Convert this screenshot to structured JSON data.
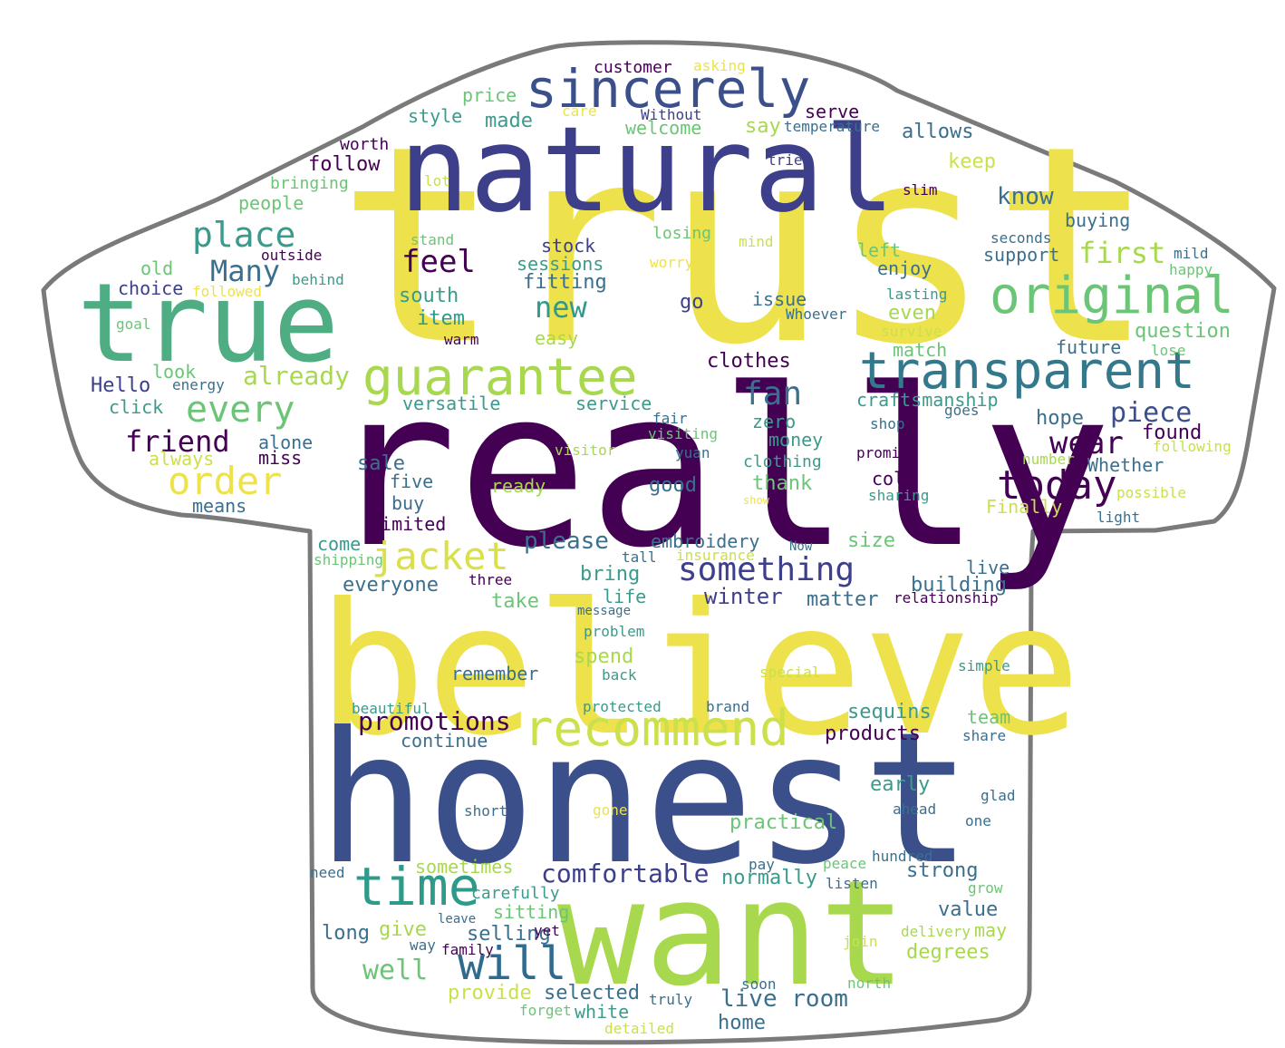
{
  "shape": "t-shirt",
  "colors": {
    "outline": "#7a7a7a",
    "fill": "#ffffff",
    "palette": [
      "#440154",
      "#3b528b",
      "#21918c",
      "#5ec962",
      "#a0da39",
      "#fde725"
    ]
  },
  "words": [
    {
      "text": "trust",
      "color": "#ede24c"
    },
    {
      "text": "really",
      "color": "#440154"
    },
    {
      "text": "believe",
      "color": "#ede24c"
    },
    {
      "text": "honest",
      "color": "#3b4f8a"
    },
    {
      "text": "natural",
      "color": "#3d3f8a"
    },
    {
      "text": "want",
      "color": "#a8d84e"
    },
    {
      "text": "true",
      "color": "#4fad83"
    },
    {
      "text": "sincerely",
      "color": "#3b4f8a"
    },
    {
      "text": "original",
      "color": "#6cc576"
    },
    {
      "text": "transparent",
      "color": "#34788c"
    },
    {
      "text": "guarantee",
      "color": "#a8d84e"
    },
    {
      "text": "recommend",
      "color": "#cbe04a"
    },
    {
      "text": "time",
      "color": "#2d9a8a"
    },
    {
      "text": "will",
      "color": "#2f6b8e"
    },
    {
      "text": "jacket",
      "color": "#d9e04a"
    },
    {
      "text": "today",
      "color": "#440154"
    },
    {
      "text": "every",
      "color": "#6cc576"
    },
    {
      "text": "order",
      "color": "#ede24c"
    },
    {
      "text": "place",
      "color": "#3a9a8c"
    },
    {
      "text": "Many",
      "color": "#3a6f8e"
    },
    {
      "text": "feel",
      "color": "#440154"
    },
    {
      "text": "something",
      "color": "#3d3f8a"
    },
    {
      "text": "fan",
      "color": "#3a6f8e"
    },
    {
      "text": "wear",
      "color": "#440154"
    },
    {
      "text": "piece",
      "color": "#3b4f8a"
    },
    {
      "text": "first",
      "color": "#a8d84e"
    },
    {
      "text": "friend",
      "color": "#440154"
    },
    {
      "text": "new",
      "color": "#2d9a8a"
    },
    {
      "text": "comfortable",
      "color": "#3d3f8a"
    },
    {
      "text": "promotions",
      "color": "#440154"
    },
    {
      "text": "already",
      "color": "#a8d84e"
    },
    {
      "text": "customer",
      "color": "#440154"
    },
    {
      "text": "asking",
      "color": "#ede24c"
    },
    {
      "text": "price",
      "color": "#6cc576"
    },
    {
      "text": "style",
      "color": "#3a9a8c"
    },
    {
      "text": "made",
      "color": "#3a9a8c"
    },
    {
      "text": "care",
      "color": "#ede24c"
    },
    {
      "text": "Without",
      "color": "#3d3f8a"
    },
    {
      "text": "welcome",
      "color": "#6cc576"
    },
    {
      "text": "say",
      "color": "#a8d84e"
    },
    {
      "text": "serve",
      "color": "#440154"
    },
    {
      "text": "temperature",
      "color": "#3a6f8e"
    },
    {
      "text": "allows",
      "color": "#3a6f8e"
    },
    {
      "text": "worth",
      "color": "#440154"
    },
    {
      "text": "follow",
      "color": "#440154"
    },
    {
      "text": "tried",
      "color": "#3d3f8a"
    },
    {
      "text": "keep",
      "color": "#cbe04a"
    },
    {
      "text": "bringing",
      "color": "#6cc576"
    },
    {
      "text": "lot",
      "color": "#cbe04a"
    },
    {
      "text": "slim",
      "color": "#440154"
    },
    {
      "text": "people",
      "color": "#6cc576"
    },
    {
      "text": "know",
      "color": "#3a6f8e"
    },
    {
      "text": "buying",
      "color": "#3a6f8e"
    },
    {
      "text": "stand",
      "color": "#6cc576"
    },
    {
      "text": "losing",
      "color": "#6cc576"
    },
    {
      "text": "mind",
      "color": "#cbe04a"
    },
    {
      "text": "seconds",
      "color": "#3a6f8e"
    },
    {
      "text": "outside",
      "color": "#440154"
    },
    {
      "text": "stock",
      "color": "#3d3f8a"
    },
    {
      "text": "left",
      "color": "#6cc576"
    },
    {
      "text": "support",
      "color": "#3a6f8e"
    },
    {
      "text": "mild",
      "color": "#3a6f8e"
    },
    {
      "text": "old",
      "color": "#6cc576"
    },
    {
      "text": "sessions",
      "color": "#3a9a8c"
    },
    {
      "text": "worry",
      "color": "#ede24c"
    },
    {
      "text": "enjoy",
      "color": "#3a6f8e"
    },
    {
      "text": "happy",
      "color": "#6cc576"
    },
    {
      "text": "behind",
      "color": "#3a9a8c"
    },
    {
      "text": "fitting",
      "color": "#3a6f8e"
    },
    {
      "text": "choice",
      "color": "#3d3f8a"
    },
    {
      "text": "followed",
      "color": "#ede24c"
    },
    {
      "text": "south",
      "color": "#3a9a8c"
    },
    {
      "text": "lasting",
      "color": "#3a9a8c"
    },
    {
      "text": "go",
      "color": "#3d3f8a"
    },
    {
      "text": "issue",
      "color": "#3a6f8e"
    },
    {
      "text": "goal",
      "color": "#6cc576"
    },
    {
      "text": "Whoever",
      "color": "#3a6f8e"
    },
    {
      "text": "even",
      "color": "#a8d84e"
    },
    {
      "text": "question",
      "color": "#6cc576"
    },
    {
      "text": "item",
      "color": "#2d9a8a"
    },
    {
      "text": "warm",
      "color": "#440154"
    },
    {
      "text": "easy",
      "color": "#a8d84e"
    },
    {
      "text": "survive",
      "color": "#cbe04a"
    },
    {
      "text": "lose",
      "color": "#6cc576"
    },
    {
      "text": "future",
      "color": "#3a6f8e"
    },
    {
      "text": "match",
      "color": "#6cc576"
    },
    {
      "text": "look",
      "color": "#6cc576"
    },
    {
      "text": "clothes",
      "color": "#440154"
    },
    {
      "text": "Hello",
      "color": "#3d3f8a"
    },
    {
      "text": "energy",
      "color": "#3a6f8e"
    },
    {
      "text": "versatile",
      "color": "#3a9a8c"
    },
    {
      "text": "craftsmanship",
      "color": "#3a9a8c"
    },
    {
      "text": "click",
      "color": "#3a9a8c"
    },
    {
      "text": "service",
      "color": "#3a9a8c"
    },
    {
      "text": "hope",
      "color": "#3a6f8e"
    },
    {
      "text": "fair",
      "color": "#3a6f8e"
    },
    {
      "text": "shop",
      "color": "#3a6f8e"
    },
    {
      "text": "goes",
      "color": "#3a6f8e"
    },
    {
      "text": "zero",
      "color": "#3a9a8c"
    },
    {
      "text": "visiting",
      "color": "#6cc576"
    },
    {
      "text": "found",
      "color": "#440154"
    },
    {
      "text": "alone",
      "color": "#3a6f8e"
    },
    {
      "text": "visitor",
      "color": "#a8d84e"
    },
    {
      "text": "yuan",
      "color": "#3a6f8e"
    },
    {
      "text": "money",
      "color": "#3a9a8c"
    },
    {
      "text": "promise",
      "color": "#440154"
    },
    {
      "text": "following",
      "color": "#cbe04a"
    },
    {
      "text": "miss",
      "color": "#440154"
    },
    {
      "text": "always",
      "color": "#cbe04a"
    },
    {
      "text": "clothing",
      "color": "#3a9a8c"
    },
    {
      "text": "number",
      "color": "#a8d84e"
    },
    {
      "text": "Whether",
      "color": "#3a6f8e"
    },
    {
      "text": "sale",
      "color": "#3a6f8e"
    },
    {
      "text": "five",
      "color": "#3a6f8e"
    },
    {
      "text": "thank",
      "color": "#6cc576"
    },
    {
      "text": "cold",
      "color": "#440154"
    },
    {
      "text": "ready",
      "color": "#a8d84e"
    },
    {
      "text": "good",
      "color": "#3a6f8e"
    },
    {
      "text": "sharing",
      "color": "#3a9a8c"
    },
    {
      "text": "possible",
      "color": "#cbe04a"
    },
    {
      "text": "buy",
      "color": "#3a6f8e"
    },
    {
      "text": "means",
      "color": "#3a6f8e"
    },
    {
      "text": "show",
      "color": "#ede24c"
    },
    {
      "text": "Finally",
      "color": "#cbe04a"
    },
    {
      "text": "light",
      "color": "#3a6f8e"
    },
    {
      "text": "limited",
      "color": "#440154"
    },
    {
      "text": "embroidery",
      "color": "#3a6f8e"
    },
    {
      "text": "please",
      "color": "#3a6f8e"
    },
    {
      "text": "size",
      "color": "#6cc576"
    },
    {
      "text": "come",
      "color": "#3a9a8c"
    },
    {
      "text": "tall",
      "color": "#3a6f8e"
    },
    {
      "text": "insurance",
      "color": "#cbe04a"
    },
    {
      "text": "Now",
      "color": "#3a6f8e"
    },
    {
      "text": "shipping",
      "color": "#6cc576"
    },
    {
      "text": "live",
      "color": "#3a6f8e"
    },
    {
      "text": "bring",
      "color": "#3a9a8c"
    },
    {
      "text": "three",
      "color": "#440154"
    },
    {
      "text": "everyone",
      "color": "#3a6f8e"
    },
    {
      "text": "building",
      "color": "#3a6f8e"
    },
    {
      "text": "relationship",
      "color": "#440154"
    },
    {
      "text": "life",
      "color": "#3a9a8c"
    },
    {
      "text": "winter",
      "color": "#3d3f8a"
    },
    {
      "text": "matter",
      "color": "#3a6f8e"
    },
    {
      "text": "take",
      "color": "#6cc576"
    },
    {
      "text": "message",
      "color": "#3a6f8e"
    },
    {
      "text": "problem",
      "color": "#3a9a8c"
    },
    {
      "text": "spend",
      "color": "#a8d84e"
    },
    {
      "text": "remember",
      "color": "#3a6f8e"
    },
    {
      "text": "back",
      "color": "#3a9a8c"
    },
    {
      "text": "special",
      "color": "#cbe04a"
    },
    {
      "text": "simple",
      "color": "#3a9a8c"
    },
    {
      "text": "beautiful",
      "color": "#3a9a8c"
    },
    {
      "text": "protected",
      "color": "#3a9a8c"
    },
    {
      "text": "brand",
      "color": "#3a6f8e"
    },
    {
      "text": "sequins",
      "color": "#3a9a8c"
    },
    {
      "text": "team",
      "color": "#6cc576"
    },
    {
      "text": "products",
      "color": "#440154"
    },
    {
      "text": "continue",
      "color": "#3a6f8e"
    },
    {
      "text": "share",
      "color": "#3a6f8e"
    },
    {
      "text": "early",
      "color": "#3a9a8c"
    },
    {
      "text": "short",
      "color": "#3a6f8e"
    },
    {
      "text": "gone",
      "color": "#ede24c"
    },
    {
      "text": "ahead",
      "color": "#3a6f8e"
    },
    {
      "text": "glad",
      "color": "#3a6f8e"
    },
    {
      "text": "practical",
      "color": "#6cc576"
    },
    {
      "text": "one",
      "color": "#3a6f8e"
    },
    {
      "text": "sometimes",
      "color": "#a8d84e"
    },
    {
      "text": "need",
      "color": "#3a6f8e"
    },
    {
      "text": "pay",
      "color": "#3a6f8e"
    },
    {
      "text": "peace",
      "color": "#6cc576"
    },
    {
      "text": "hundred",
      "color": "#3a6f8e"
    },
    {
      "text": "normally",
      "color": "#3a9a8c"
    },
    {
      "text": "listen",
      "color": "#3a6f8e"
    },
    {
      "text": "strong",
      "color": "#3a6f8e"
    },
    {
      "text": "carefully",
      "color": "#3a9a8c"
    },
    {
      "text": "grow",
      "color": "#6cc576"
    },
    {
      "text": "value",
      "color": "#3a6f8e"
    },
    {
      "text": "long",
      "color": "#3a6f8e"
    },
    {
      "text": "give",
      "color": "#a8d84e"
    },
    {
      "text": "sitting",
      "color": "#6cc576"
    },
    {
      "text": "selling",
      "color": "#3a6f8e"
    },
    {
      "text": "leave",
      "color": "#3a6f8e"
    },
    {
      "text": "yet",
      "color": "#440154"
    },
    {
      "text": "may",
      "color": "#a8d84e"
    },
    {
      "text": "way",
      "color": "#3a6f8e"
    },
    {
      "text": "family",
      "color": "#440154"
    },
    {
      "text": "join",
      "color": "#cbe04a"
    },
    {
      "text": "delivery",
      "color": "#a8d84e"
    },
    {
      "text": "degrees",
      "color": "#a8d84e"
    },
    {
      "text": "well",
      "color": "#6cc576"
    },
    {
      "text": "soon",
      "color": "#3a6f8e"
    },
    {
      "text": "north",
      "color": "#6cc576"
    },
    {
      "text": "provide",
      "color": "#cbe04a"
    },
    {
      "text": "selected",
      "color": "#3a6f8e"
    },
    {
      "text": "truly",
      "color": "#3a6f8e"
    },
    {
      "text": "live room",
      "color": "#3a6f8e"
    },
    {
      "text": "forget",
      "color": "#6cc576"
    },
    {
      "text": "white",
      "color": "#3a9a8c"
    },
    {
      "text": "home",
      "color": "#3a6f8e"
    },
    {
      "text": "detailed",
      "color": "#cbe04a"
    }
  ]
}
